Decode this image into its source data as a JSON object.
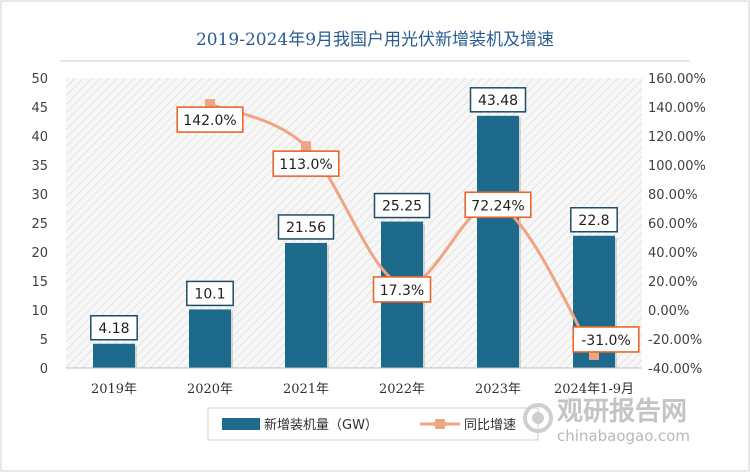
{
  "chart_data": {
    "type": "bar",
    "title": "2019-2024年9月我国户用光伏新增装机及增速",
    "categories": [
      "2019年",
      "2020年",
      "2021年",
      "2022年",
      "2023年",
      "2024年1-9月"
    ],
    "series": [
      {
        "name": "新增装机量（GW）",
        "type": "bar",
        "axis": "left",
        "values": [
          4.18,
          10.1,
          21.56,
          25.25,
          43.48,
          22.8
        ],
        "labels": [
          "4.18",
          "10.1",
          "21.56",
          "25.25",
          "43.48",
          "22.8"
        ],
        "color": "#1e6a8d"
      },
      {
        "name": "同比增速",
        "type": "line",
        "axis": "right",
        "values": [
          null,
          142.0,
          113.0,
          17.3,
          72.24,
          -31.0
        ],
        "labels": [
          "",
          "142.0%",
          "113.0%",
          "17.3%",
          "72.24%",
          "-31.0%"
        ],
        "color": "#f0a582"
      }
    ],
    "ylim_left": [
      0,
      50
    ],
    "yticks_left": [
      "0",
      "5",
      "10",
      "15",
      "20",
      "25",
      "30",
      "35",
      "40",
      "45",
      "50"
    ],
    "ylim_right": [
      -40,
      160
    ],
    "yticks_right": [
      "-40.00%",
      "-20.00%",
      "0.00%",
      "20.00%",
      "40.00%",
      "60.00%",
      "80.00%",
      "100.00%",
      "120.00%",
      "140.00%",
      "160.00%"
    ],
    "grid": false,
    "legend_position": "bottom"
  },
  "watermark": {
    "name": "观研报告网",
    "url": "chinabaogao.com"
  }
}
